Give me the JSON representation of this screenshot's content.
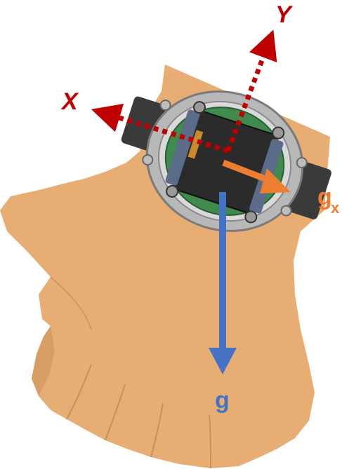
{
  "labels": {
    "x_axis": "X",
    "y_axis": "Y",
    "gravity": "g",
    "gx_main": "g",
    "gx_sub": "x"
  },
  "colors": {
    "axis": "#c00000",
    "gravity": "#4472c4",
    "gx": "#ed7d31",
    "skin": "#e8ad72",
    "skin_shadow": "#c98f58",
    "strap": "#3a3a3a",
    "bezel": "#b8b8b8",
    "pcb": "#3f8a4c",
    "module": "#2b2b2b"
  },
  "icons": {
    "hand": "hand-illustration",
    "watch": "wrist-device-illustration"
  }
}
